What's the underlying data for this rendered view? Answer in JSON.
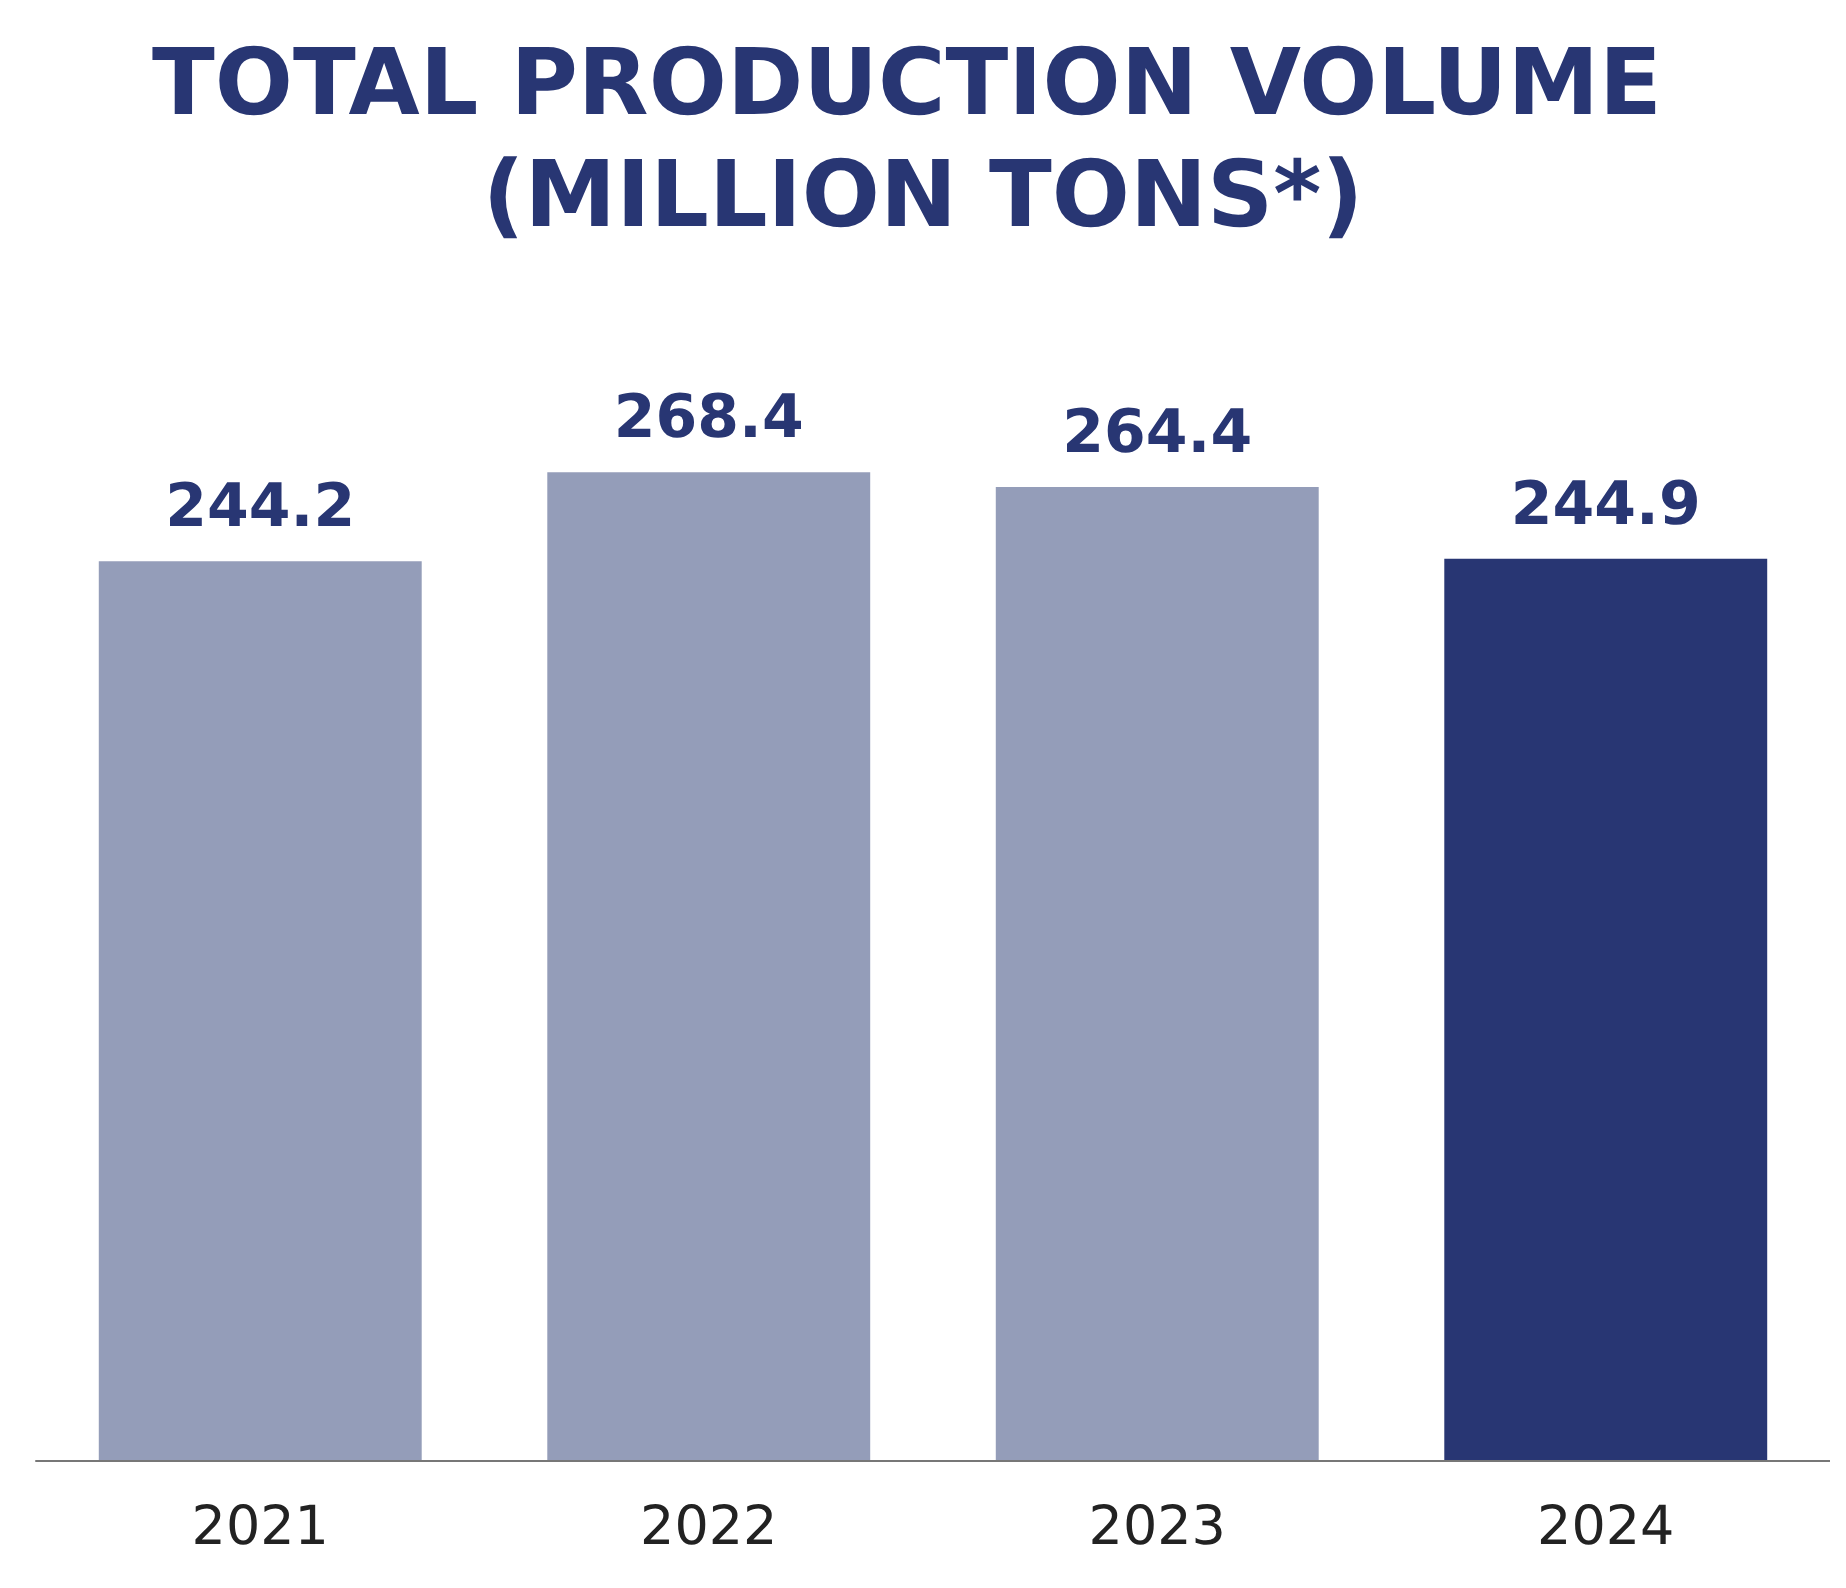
{
  "chart_data": {
    "type": "bar",
    "title": "TOTAL PRODUCTION VOLUME (MILLION TONS*)",
    "categories": [
      "2021",
      "2022",
      "2023",
      "2024"
    ],
    "values": [
      244.2,
      268.4,
      264.4,
      244.9
    ],
    "colors": [
      "#949db9",
      "#949db9",
      "#949db9",
      "#283673"
    ],
    "data_labels": true
  }
}
